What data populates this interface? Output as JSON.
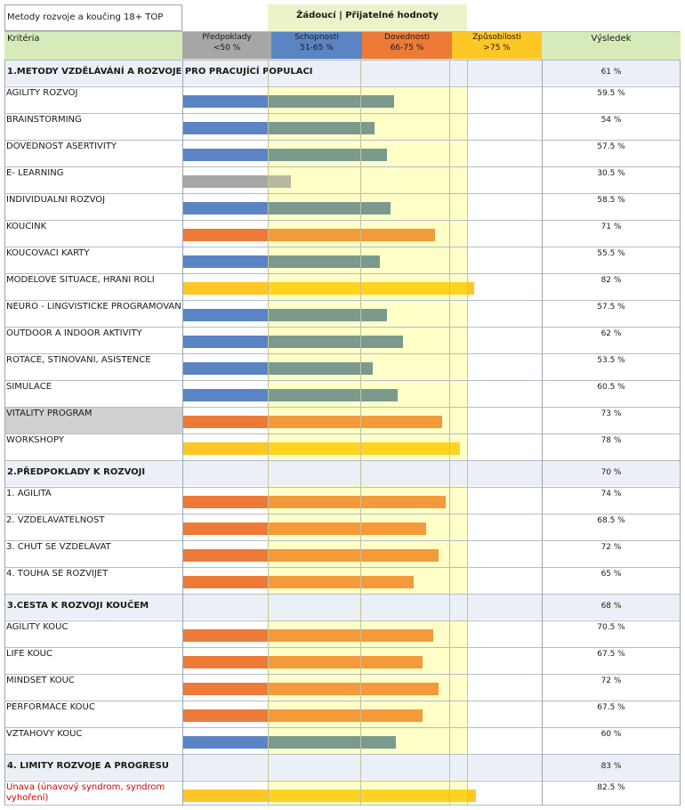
{
  "header": {
    "title": "Metody rozvoje a koučing 18+ TOP",
    "band_label": "Žádoucí | Přijatelné hodnoty",
    "criteria_label": "Kritéria",
    "result_label": "Výsledek",
    "columns": [
      {
        "name": "Předpoklady",
        "range": "<50 %",
        "color": "#a6a6a6"
      },
      {
        "name": "Schopnosti",
        "range": "51-65 %",
        "color": "#5b84c4"
      },
      {
        "name": "Dovednosti",
        "range": "66-75 %",
        "color": "#ee7a38"
      },
      {
        "name": "Způsobilosti",
        "range": ">75 %",
        "color": "#ffc726"
      }
    ]
  },
  "colors": {
    "grey": "#a6a6a6",
    "blue": "#5b84c4",
    "orange": "#ee7a38",
    "yellow": "#ffc726",
    "section_bg": "#ebf0f7",
    "band": "#ffffc8"
  },
  "chart_data": {
    "type": "bar",
    "orientation": "horizontal",
    "xlim": [
      0,
      100
    ],
    "unit": "%",
    "sections": [
      {
        "title": "1.METODY VZDĚLÁVÁNÍ A ROZVOJE PRO PRACUJÍCÍ POPULACI",
        "value": 61,
        "label": "61 %",
        "items": [
          {
            "label": "AGILITY ROZVOJ",
            "value": 59.5,
            "text": "59.5 %",
            "color": "blue"
          },
          {
            "label": "BRAINSTORMING",
            "value": 54,
            "text": "54 %",
            "color": "blue"
          },
          {
            "label": "DOVEDNOST ASERTIVITY",
            "value": 57.5,
            "text": "57.5 %",
            "color": "blue"
          },
          {
            "label": "E- LEARNING",
            "value": 30.5,
            "text": "30.5 %",
            "color": "grey"
          },
          {
            "label": "INDIVIDUALNÍ ROZVOJ",
            "value": 58.5,
            "text": "58.5 %",
            "color": "blue"
          },
          {
            "label": "KOUČINK",
            "value": 71,
            "text": "71 %",
            "color": "orange"
          },
          {
            "label": "KOUČOVACÍ KARTY",
            "value": 55.5,
            "text": "55.5 %",
            "color": "blue"
          },
          {
            "label": "MODELOVÉ SITUACE, HRANÍ ROLÍ",
            "value": 82,
            "text": "82 %",
            "color": "yellow"
          },
          {
            "label": "NEURO - LINGVISTICKÉ PROGRAMOVÁNÍ",
            "value": 57.5,
            "text": "57.5 %",
            "color": "blue"
          },
          {
            "label": "OUTDOOR A INDOOR AKTIVITY",
            "value": 62,
            "text": "62 %",
            "color": "blue"
          },
          {
            "label": "ROTACE, STÍNOVÁNÍ, ASISTENCE",
            "value": 53.5,
            "text": "53.5 %",
            "color": "blue"
          },
          {
            "label": "SIMULACE",
            "value": 60.5,
            "text": "60.5 %",
            "color": "blue"
          },
          {
            "label": "VITALITY PROGRAM",
            "value": 73,
            "text": "73 %",
            "color": "orange",
            "highlight": true
          },
          {
            "label": "WORKSHOPY",
            "value": 78,
            "text": "78 %",
            "color": "yellow"
          }
        ]
      },
      {
        "title": "2.PŘEDPOKLADY K ROZVOJI",
        "value": 70,
        "label": "70 %",
        "items": [
          {
            "label": "1. AGILITA",
            "value": 74,
            "text": "74 %",
            "color": "orange"
          },
          {
            "label": "2. VZDELAVATELNOST",
            "value": 68.5,
            "text": "68.5 %",
            "color": "orange"
          },
          {
            "label": "3. CHUŤ SE VZDĚLÁVAT",
            "value": 72,
            "text": "72 %",
            "color": "orange"
          },
          {
            "label": "4. TOUHA SE ROZVÍJET",
            "value": 65,
            "text": "65 %",
            "color": "orange"
          }
        ]
      },
      {
        "title": "3.CESTA K ROZVOJI KOUČEM",
        "value": 68,
        "label": "68 %",
        "items": [
          {
            "label": "AGILITY KOUČ",
            "value": 70.5,
            "text": "70.5 %",
            "color": "orange"
          },
          {
            "label": "LIFE KOUČ",
            "value": 67.5,
            "text": "67.5 %",
            "color": "orange"
          },
          {
            "label": "MINDSET KOUČ",
            "value": 72,
            "text": "72 %",
            "color": "orange"
          },
          {
            "label": "PERFORMACE KOUČ",
            "value": 67.5,
            "text": "67.5 %",
            "color": "orange"
          },
          {
            "label": "VZTAHOVÝ KOUČ",
            "value": 60,
            "text": "60 %",
            "color": "blue"
          }
        ]
      },
      {
        "title": "4. LIMITY ROZVOJE A PROGRESU",
        "value": 83,
        "label": "83 %",
        "items": [
          {
            "label": "Únava (únavový syndrom, syndrom vyhoření)",
            "value": 82.5,
            "text": "82.5 %",
            "color": "yellow",
            "red": true
          }
        ]
      }
    ]
  }
}
